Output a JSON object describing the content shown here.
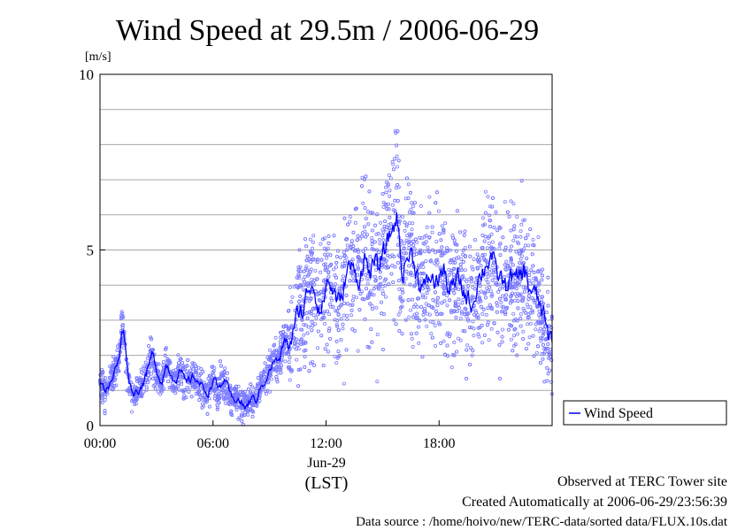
{
  "chart_data": {
    "type": "line",
    "title": "Wind Speed at 29.5m / 2006-06-29",
    "ylabel": "[m/s]",
    "xlabel": "(LST)",
    "date_label": "Jun-29",
    "x_unit": "hours (LST)",
    "xlim": [
      0,
      24
    ],
    "ylim": [
      0,
      10
    ],
    "x_ticks": [
      {
        "value": 0,
        "label": "00:00"
      },
      {
        "value": 6,
        "label": "06:00"
      },
      {
        "value": 12,
        "label": "12:00"
      },
      {
        "value": 18,
        "label": "18:00"
      }
    ],
    "y_ticks": [
      {
        "value": 0,
        "label": "0"
      },
      {
        "value": 5,
        "label": "5"
      },
      {
        "value": 10,
        "label": "10"
      }
    ],
    "grid": true,
    "legend_position": "bottom-right",
    "series": [
      {
        "name": "Wind Speed",
        "color": "#0000ff",
        "scatter_color": "#7b7bff",
        "x": [
          0.0,
          0.25,
          0.5,
          0.75,
          1.0,
          1.15,
          1.3,
          1.5,
          1.75,
          2.0,
          2.25,
          2.5,
          2.75,
          3.0,
          3.25,
          3.5,
          3.75,
          4.0,
          4.25,
          4.5,
          4.75,
          5.0,
          5.25,
          5.5,
          5.75,
          6.0,
          6.25,
          6.5,
          6.75,
          7.0,
          7.25,
          7.5,
          7.75,
          8.0,
          8.25,
          8.5,
          8.75,
          9.0,
          9.25,
          9.5,
          9.75,
          10.0,
          10.25,
          10.5,
          10.75,
          11.0,
          11.25,
          11.5,
          11.75,
          12.0,
          12.25,
          12.5,
          12.75,
          13.0,
          13.25,
          13.5,
          13.75,
          14.0,
          14.25,
          14.5,
          14.75,
          15.0,
          15.25,
          15.5,
          15.75,
          16.0,
          16.25,
          16.5,
          16.75,
          17.0,
          17.25,
          17.5,
          17.75,
          18.0,
          18.25,
          18.5,
          18.75,
          19.0,
          19.25,
          19.5,
          19.75,
          20.0,
          20.25,
          20.5,
          20.75,
          21.0,
          21.25,
          21.5,
          21.75,
          22.0,
          22.25,
          22.5,
          22.75,
          23.0,
          23.25,
          23.5,
          23.75
        ],
        "values": [
          1.3,
          1.0,
          1.1,
          1.6,
          1.9,
          3.0,
          2.4,
          1.2,
          0.9,
          1.0,
          1.2,
          1.6,
          2.1,
          1.5,
          1.2,
          1.8,
          1.4,
          1.3,
          1.6,
          1.2,
          1.3,
          1.4,
          1.2,
          1.0,
          0.9,
          1.4,
          1.0,
          1.3,
          1.1,
          0.7,
          0.8,
          0.6,
          0.5,
          0.8,
          0.7,
          1.1,
          1.3,
          1.6,
          1.9,
          1.8,
          2.5,
          2.3,
          2.6,
          3.4,
          3.2,
          3.9,
          4.1,
          3.5,
          3.2,
          4.2,
          3.9,
          3.7,
          3.4,
          4.3,
          4.6,
          4.3,
          4.1,
          4.9,
          4.3,
          4.6,
          4.5,
          4.9,
          5.3,
          5.6,
          6.0,
          4.2,
          4.8,
          4.9,
          4.4,
          4.0,
          3.9,
          4.3,
          4.0,
          4.3,
          4.4,
          3.8,
          4.0,
          4.2,
          3.8,
          3.6,
          3.4,
          4.1,
          4.4,
          4.6,
          4.9,
          4.3,
          4.2,
          3.9,
          4.3,
          4.1,
          4.3,
          4.4,
          3.9,
          3.8,
          3.5,
          3.2,
          2.5
        ]
      }
    ]
  },
  "footer": {
    "line1": "Observed at TERC Tower site",
    "line2": "Created Automatically at 2006-06-29/23:56:39",
    "line3": "Data source : /home/hoivo/new/TERC-data/sorted  data/FLUX.10s.dat"
  }
}
